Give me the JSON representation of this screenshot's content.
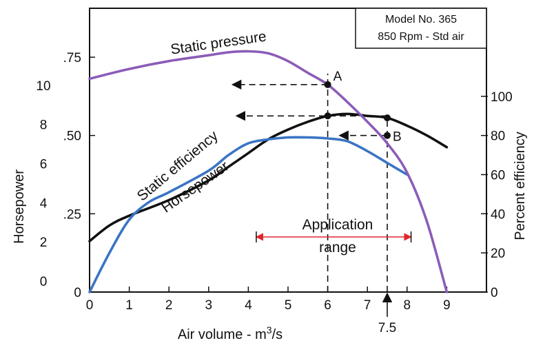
{
  "chart_data": {
    "type": "line",
    "xlabel": "Air volume - m",
    "xlabel_sup": "3",
    "xlabel_suffix": "/s",
    "xticks": [
      "0",
      "1",
      "2",
      "3",
      "4",
      "5",
      "6",
      "7",
      "8",
      "9"
    ],
    "xlim": [
      0,
      10
    ],
    "left_axis_title": "Horsepower",
    "horsepower_ticks": [
      {
        "label": "0",
        "value": 0
      },
      {
        "label": "2",
        "value": 2
      },
      {
        "label": "4",
        "value": 4
      },
      {
        "label": "6",
        "value": 6
      },
      {
        "label": "8",
        "value": 8
      },
      {
        "label": "10",
        "value": 10
      }
    ],
    "pressure_ticks": [
      {
        "label": "0",
        "value": 0
      },
      {
        "label": ".25",
        "value": 0.25
      },
      {
        "label": ".50",
        "value": 0.5
      },
      {
        "label": ".75",
        "value": 0.75
      }
    ],
    "right_axis_title": "Percent efficiency",
    "efficiency_ticks": [
      {
        "label": "0",
        "value": 0
      },
      {
        "label": "20",
        "value": 20
      },
      {
        "label": "40",
        "value": 40
      },
      {
        "label": "60",
        "value": 60
      },
      {
        "label": "80",
        "value": 80
      },
      {
        "label": "100",
        "value": 100
      }
    ],
    "efficiency_ylim": [
      0,
      145
    ],
    "model_box": [
      "Model No. 365",
      "850 Rpm - Std air"
    ],
    "series": [
      {
        "name": "Static pressure",
        "color": "#8b5cb8",
        "x": [
          0,
          1,
          2,
          3,
          3.5,
          4,
          4.5,
          5,
          5.5,
          6,
          6.5,
          7,
          7.5,
          8,
          8.5,
          9
        ],
        "y": [
          109,
          114,
          118,
          121,
          122.5,
          123,
          122,
          118,
          112,
          106,
          97,
          87,
          76,
          61,
          36,
          0
        ]
      },
      {
        "name": "Horsepower",
        "color": "#111111",
        "x": [
          0,
          0.5,
          1,
          2,
          3,
          3.5,
          4,
          4.5,
          5,
          5.5,
          6,
          6.5,
          7,
          7.5,
          8,
          8.5,
          9
        ],
        "y": [
          26,
          34,
          39,
          47,
          57,
          64,
          71,
          78,
          83,
          87,
          90,
          91,
          90,
          89,
          85,
          80,
          74
        ]
      },
      {
        "name": "Static efficiency",
        "color": "#3a74c4",
        "x": [
          0,
          0.5,
          1,
          1.5,
          2,
          3,
          3.5,
          4,
          4.5,
          5,
          5.5,
          6,
          6.5,
          7,
          7.5,
          8
        ],
        "y": [
          0,
          20,
          37,
          46,
          51,
          62,
          70,
          76,
          78,
          79,
          79,
          78.5,
          77,
          72,
          66,
          60
        ]
      }
    ],
    "points": [
      {
        "label": "A",
        "x": 6,
        "y": 106
      },
      {
        "label": "B",
        "x": 7.5,
        "y": 80
      }
    ],
    "markers": [
      {
        "x": 6,
        "y": 90
      },
      {
        "x": 7.5,
        "y": 89
      }
    ],
    "application_range": {
      "label_line1": "Application",
      "label_line2": "range",
      "x_start": 4.2,
      "x_end": 8.1,
      "color": "#e0262b"
    },
    "marked_x": {
      "label": "7.5",
      "value": 7.5
    }
  }
}
